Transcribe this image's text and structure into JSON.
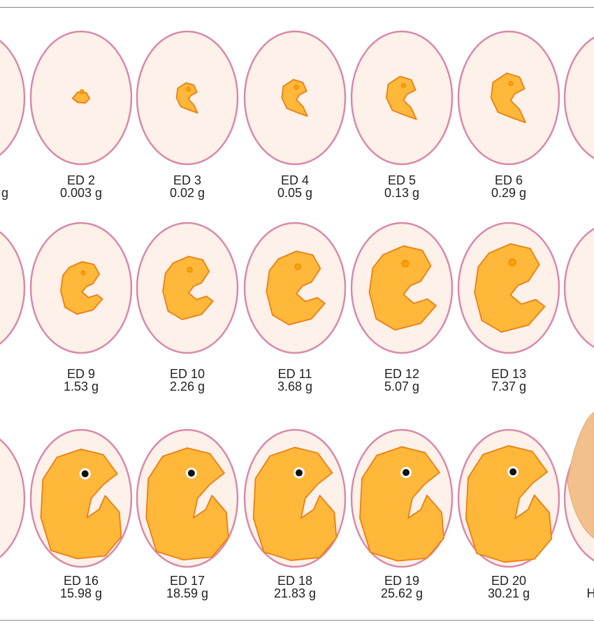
{
  "colors": {
    "egg_fill": "#fdf1ea",
    "egg_stroke": "#d98aa8",
    "embryo_fill": "#ffb83a",
    "embryo_stroke": "#ee7e12",
    "eye_fill": "#f7a400",
    "eye_dot": "#111111",
    "frame_line": "#8a8a8a",
    "text": "#222222"
  },
  "rows": [
    {
      "stages": [
        {
          "day": "",
          "weight": "g",
          "shape": "edge",
          "eye": "none",
          "size": 0
        },
        {
          "day": "ED 2",
          "weight": "0.003 g",
          "shape": "blob",
          "eye": "orange",
          "size": 0.2
        },
        {
          "day": "ED 3",
          "weight": "0.02 g",
          "shape": "curl",
          "eye": "orange",
          "size": 0.28
        },
        {
          "day": "ED 4",
          "weight": "0.05 g",
          "shape": "curl",
          "eye": "orange",
          "size": 0.34
        },
        {
          "day": "ED 5",
          "weight": "0.13 g",
          "shape": "curl",
          "eye": "orange",
          "size": 0.4
        },
        {
          "day": "ED 6",
          "weight": "0.29 g",
          "shape": "curl",
          "eye": "orange",
          "size": 0.46
        },
        {
          "day": "",
          "weight": "",
          "shape": "edge",
          "eye": "none",
          "size": 0
        }
      ]
    },
    {
      "stages": [
        {
          "day": "",
          "weight": "",
          "shape": "edge",
          "eye": "none",
          "size": 0
        },
        {
          "day": "ED 9",
          "weight": "1.53 g",
          "shape": "embryo",
          "eye": "orange",
          "size": 0.5
        },
        {
          "day": "ED 10",
          "weight": "2.26 g",
          "shape": "embryo",
          "eye": "orange",
          "size": 0.6
        },
        {
          "day": "ED 11",
          "weight": "3.68 g",
          "shape": "embryo",
          "eye": "orange",
          "size": 0.7
        },
        {
          "day": "ED 12",
          "weight": "5.07 g",
          "shape": "embryo",
          "eye": "orange",
          "size": 0.8
        },
        {
          "day": "ED 13",
          "weight": "7.37 g",
          "shape": "embryo",
          "eye": "orange",
          "size": 0.84
        },
        {
          "day": "",
          "weight": "",
          "shape": "edge",
          "eye": "none",
          "size": 0
        }
      ]
    },
    {
      "stages": [
        {
          "day": "",
          "weight": "",
          "shape": "edge",
          "eye": "none",
          "size": 0
        },
        {
          "day": "ED 16",
          "weight": "15.98 g",
          "shape": "big",
          "eye": "black",
          "size": 0.94
        },
        {
          "day": "ED 17",
          "weight": "18.59 g",
          "shape": "big",
          "eye": "black",
          "size": 0.96
        },
        {
          "day": "ED 18",
          "weight": "21.83 g",
          "shape": "big",
          "eye": "black",
          "size": 0.97
        },
        {
          "day": "ED 19",
          "weight": "25.62 g",
          "shape": "big",
          "eye": "black",
          "size": 0.98
        },
        {
          "day": "ED 20",
          "weight": "30.21 g",
          "shape": "big",
          "eye": "black",
          "size": 1
        },
        {
          "day": "",
          "weight": "H",
          "shape": "chick",
          "eye": "none",
          "size": 0
        }
      ]
    }
  ]
}
